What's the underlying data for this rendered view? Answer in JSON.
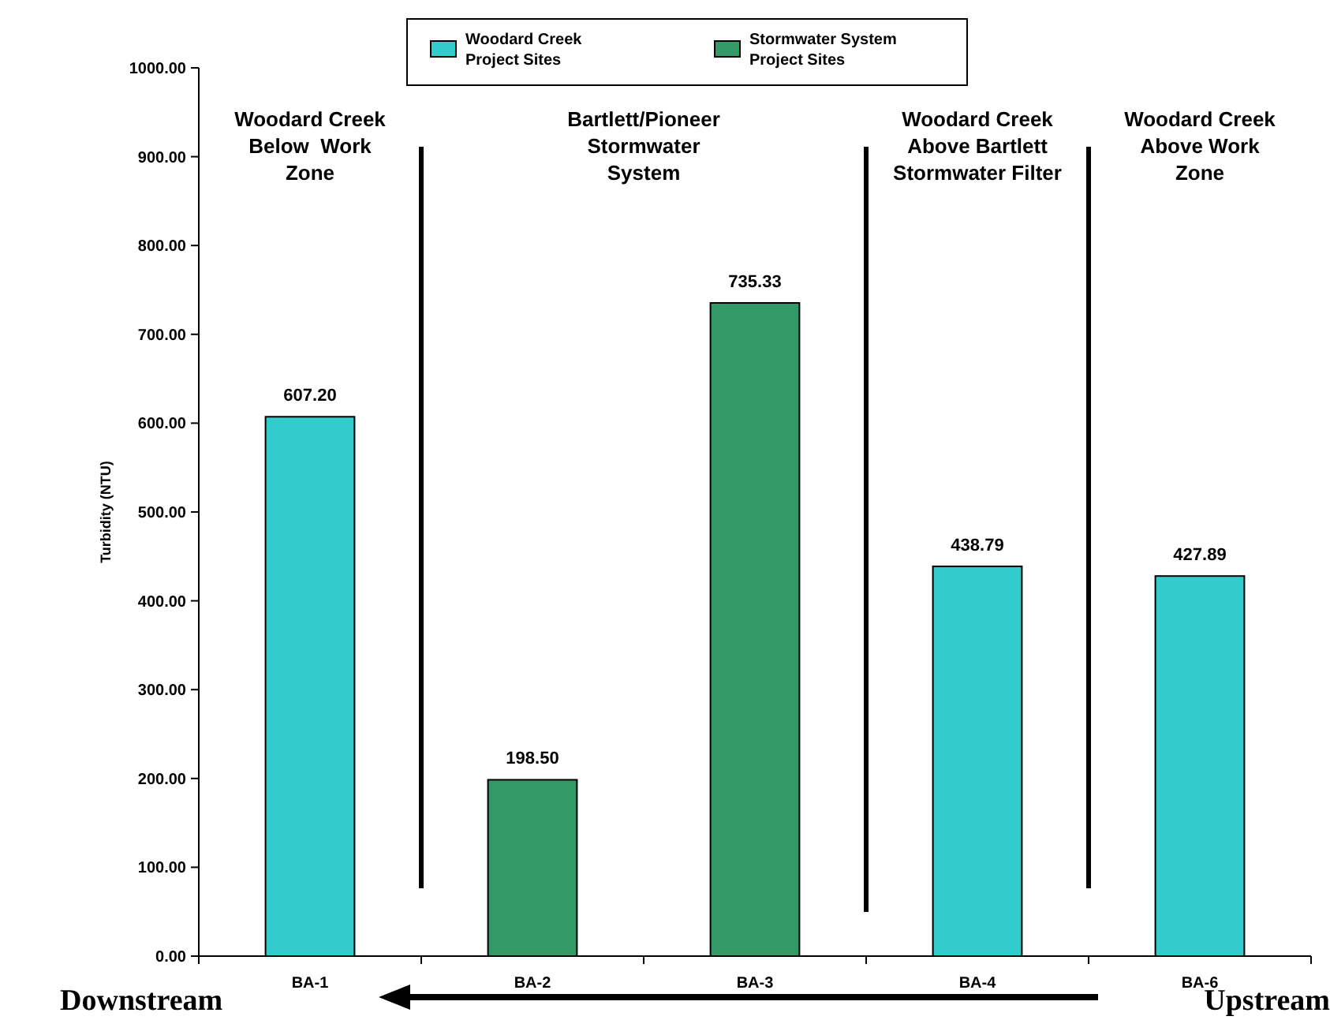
{
  "chart_data": {
    "type": "bar",
    "stacked": true,
    "categories": [
      "BA-1",
      "BA-2",
      "BA-3",
      "BA-4",
      "BA-6"
    ],
    "series": [
      {
        "name": "Woodard Creek Project Sites",
        "color": "#33cccc",
        "values": [
          607.2,
          null,
          null,
          438.79,
          427.89
        ],
        "value_labels": [
          "607.20",
          null,
          null,
          "438.79",
          "427.89"
        ]
      },
      {
        "name": "Stormwater System Project Sites",
        "color": "#339966",
        "values": [
          null,
          198.5,
          735.33,
          null,
          null
        ],
        "value_labels": [
          null,
          "198.50",
          "735.33",
          null,
          null
        ]
      }
    ],
    "ylabel": "Turbidity (NTU)",
    "ylim": [
      0,
      1000
    ],
    "yticks": [
      {
        "value": 0,
        "label": "0.00"
      },
      {
        "value": 100,
        "label": "100.00"
      },
      {
        "value": 200,
        "label": "200.00"
      },
      {
        "value": 300,
        "label": "300.00"
      },
      {
        "value": 400,
        "label": "400.00"
      },
      {
        "value": 500,
        "label": "500.00"
      },
      {
        "value": 600,
        "label": "600.00"
      },
      {
        "value": 700,
        "label": "700.00"
      },
      {
        "value": 800,
        "label": "800.00"
      },
      {
        "value": 900,
        "label": "900.00"
      },
      {
        "value": 1000,
        "label": "1000.00"
      }
    ],
    "legend": "top",
    "grid": false,
    "annotations": [
      "Woodard Creek\nBelow  Work\nZone",
      "Bartlett/Pioneer\nStormwater\nSystem",
      "Woodard Creek\nAbove Bartlett\nStormwater Filter",
      "Woodard Creek\nAbove Work\nZone",
      "Downstream",
      "Upstream"
    ]
  }
}
